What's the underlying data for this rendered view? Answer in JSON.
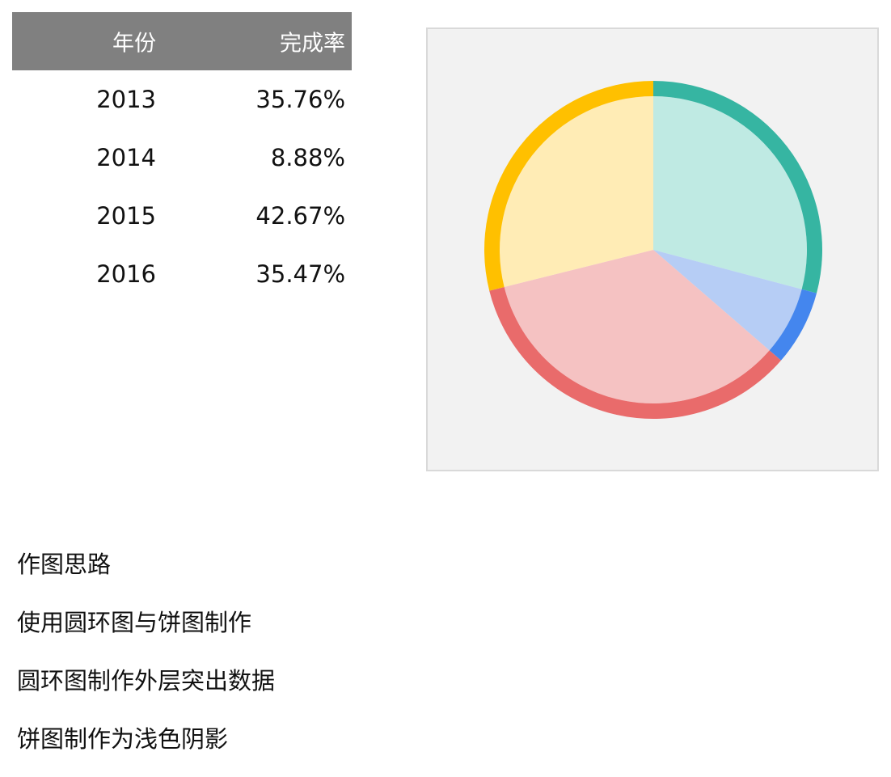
{
  "table": {
    "headers": {
      "year": "年份",
      "rate": "完成率"
    },
    "rows": [
      {
        "year": "2013",
        "rate": "35.76%"
      },
      {
        "year": "2014",
        "rate": "8.88%"
      },
      {
        "year": "2015",
        "rate": "42.67%"
      },
      {
        "year": "2016",
        "rate": "35.47%"
      }
    ]
  },
  "chart_data": {
    "type": "pie",
    "categories": [
      "2013",
      "2014",
      "2015",
      "2016"
    ],
    "values": [
      35.76,
      8.88,
      42.67,
      35.47
    ],
    "start_angle_deg": 0,
    "direction": "clockwise",
    "ring_colors": [
      "#36b5a2",
      "#4486ee",
      "#e96b6b",
      "#ffc000"
    ],
    "shadow_colors": [
      "#bfeae3",
      "#b6cdf5",
      "#f5c2c2",
      "#ffecb5"
    ],
    "legend": "none",
    "title": ""
  },
  "notes": [
    "作图思路",
    "使用圆环图与饼图制作",
    "圆环图制作外层突出数据",
    "饼图制作为浅色阴影"
  ]
}
